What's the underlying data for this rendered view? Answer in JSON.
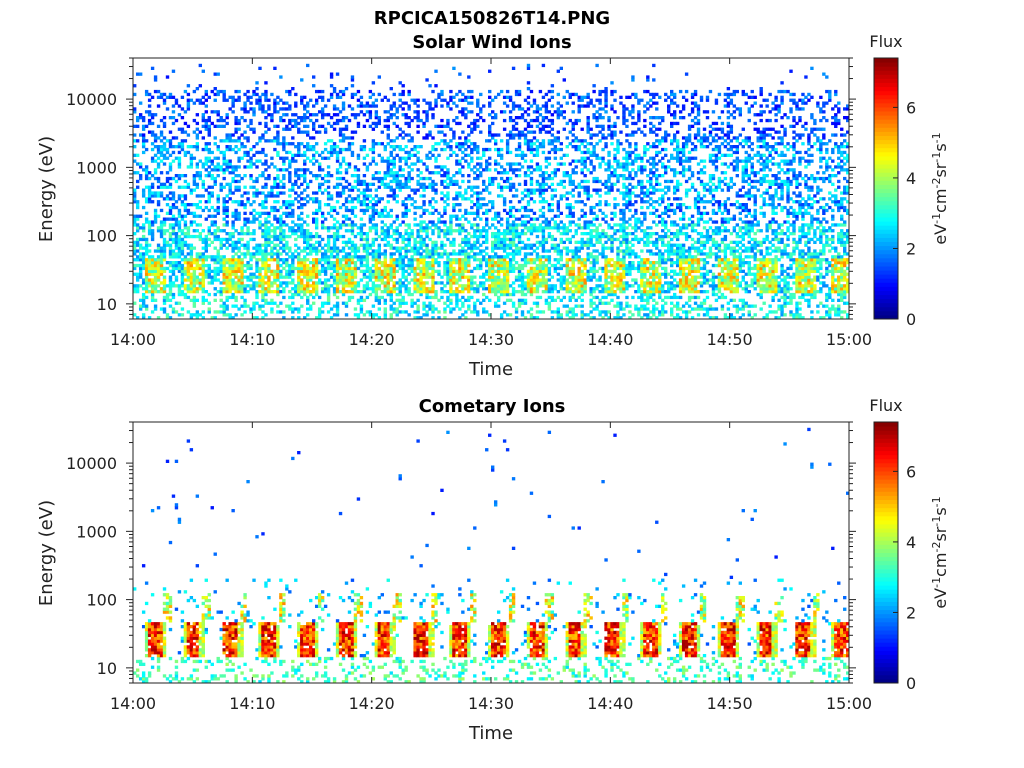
{
  "figure_title": "RPCICA150826T14.PNG",
  "chart_data": [
    {
      "type": "heatmap",
      "title": "Solar Wind Ions",
      "xlabel": "Time",
      "ylabel": "Energy (eV)",
      "x_ticks": [
        "14:00",
        "14:10",
        "14:20",
        "14:30",
        "14:40",
        "14:50",
        "15:00"
      ],
      "xlim": [
        "14:00",
        "15:00"
      ],
      "y_scale": "log",
      "y_ticks": [
        "10",
        "100",
        "1000",
        "10000"
      ],
      "ylim": [
        6,
        40000
      ],
      "colorbar": {
        "label": "Flux",
        "unit_label": "eV-1cm-2sr-1s-1",
        "range": [
          0,
          7.4
        ],
        "ticks": [
          "0",
          "2",
          "4",
          "6"
        ],
        "colormap": "jet"
      },
      "summary": {
        "background": "sparse low-flux counts (~1-3) across 100-30000 eV throughout the hour",
        "repeating_band_energy_eV": [
          15,
          45
        ],
        "band_peak_flux": 5.5,
        "band_period_min": 3.2
      }
    },
    {
      "type": "heatmap",
      "title": "Cometary Ions",
      "xlabel": "Time",
      "ylabel": "Energy (eV)",
      "x_ticks": [
        "14:00",
        "14:10",
        "14:20",
        "14:30",
        "14:40",
        "14:50",
        "15:00"
      ],
      "xlim": [
        "14:00",
        "15:00"
      ],
      "y_scale": "log",
      "y_ticks": [
        "10",
        "100",
        "1000",
        "10000"
      ],
      "ylim": [
        6,
        40000
      ],
      "colorbar": {
        "label": "Flux",
        "unit_label": "eV-1cm-2sr-1s-1",
        "range": [
          0,
          7.4
        ],
        "ticks": [
          "0",
          "2",
          "4",
          "6"
        ],
        "colormap": "jet"
      },
      "summary": {
        "background": "isolated low-flux counts (~1-2) scattered from 100 to 30000 eV",
        "repeating_band_energy_eV": [
          15,
          45
        ],
        "band_peak_flux": 7.2,
        "band_period_min": 3.2
      }
    }
  ]
}
